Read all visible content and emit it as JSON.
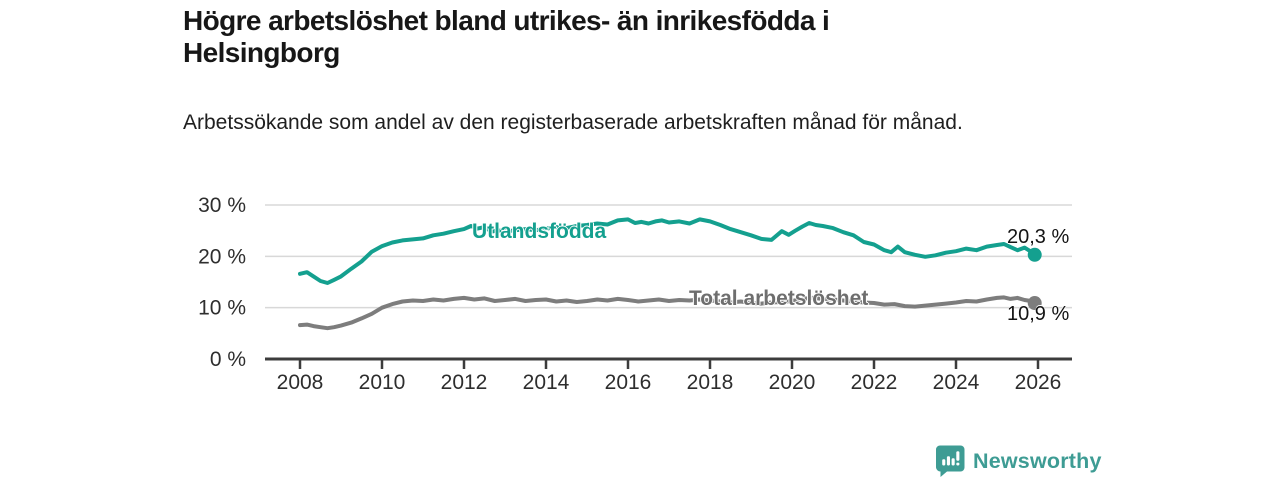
{
  "header": {
    "title": "Högre arbetslöshet bland utrikes- än inrikesfödda i Helsingborg",
    "subtitle": "Arbetssökande som andel av den registerbaserade arbetskraften månad för månad."
  },
  "footer": {
    "brand": "Newsworthy",
    "brand_color": "#3e9c94",
    "logo_icon": "newsworthy-chart-bubble-icon"
  },
  "chart_data": {
    "type": "line",
    "title": "Högre arbetslöshet bland utrikes- än inrikesfödda i Helsingborg",
    "subtitle": "Arbetssökande som andel av den registerbaserade arbetskraften månad för månad.",
    "unit": "%",
    "xlim": [
      2007.15,
      2026.85
    ],
    "ylim": [
      0,
      30
    ],
    "grid": "horizontal",
    "legend_position": "inline-labels",
    "x_ticks": [
      2008,
      2010,
      2012,
      2014,
      2016,
      2018,
      2020,
      2022,
      2024,
      2026
    ],
    "y_ticks": [
      {
        "value": 0,
        "label": "0 %"
      },
      {
        "value": 10,
        "label": "10 %"
      },
      {
        "value": 20,
        "label": "20 %"
      },
      {
        "value": 30,
        "label": "30 %"
      }
    ],
    "colors": {
      "axis": "#3c3c3c",
      "gridline": "#d8d8d8",
      "tick_text": "#2e2e2e"
    },
    "series": [
      {
        "name": "Utlandsfödda",
        "color": "#14a08f",
        "end_label": "20,3 %",
        "last_value": 20.3,
        "points": [
          [
            2008.0,
            16.6
          ],
          [
            2008.17,
            16.9
          ],
          [
            2008.33,
            16.1
          ],
          [
            2008.5,
            15.2
          ],
          [
            2008.67,
            14.8
          ],
          [
            2008.83,
            15.4
          ],
          [
            2009.0,
            16.1
          ],
          [
            2009.25,
            17.6
          ],
          [
            2009.5,
            19.0
          ],
          [
            2009.75,
            20.9
          ],
          [
            2010.0,
            22.0
          ],
          [
            2010.25,
            22.7
          ],
          [
            2010.5,
            23.1
          ],
          [
            2010.75,
            23.3
          ],
          [
            2011.0,
            23.5
          ],
          [
            2011.25,
            24.1
          ],
          [
            2011.5,
            24.4
          ],
          [
            2011.75,
            24.9
          ],
          [
            2012.0,
            25.3
          ],
          [
            2012.17,
            25.9
          ],
          [
            2012.33,
            25.4
          ],
          [
            2012.5,
            25.7
          ],
          [
            2012.67,
            24.8
          ],
          [
            2012.83,
            25.1
          ],
          [
            2013.0,
            24.8
          ],
          [
            2013.25,
            25.1
          ],
          [
            2013.5,
            25.3
          ],
          [
            2013.75,
            25.1
          ],
          [
            2014.0,
            25.4
          ],
          [
            2014.25,
            25.7
          ],
          [
            2014.5,
            25.5
          ],
          [
            2014.75,
            25.9
          ],
          [
            2015.0,
            26.1
          ],
          [
            2015.25,
            26.4
          ],
          [
            2015.5,
            26.2
          ],
          [
            2015.75,
            27.0
          ],
          [
            2016.0,
            27.2
          ],
          [
            2016.17,
            26.5
          ],
          [
            2016.33,
            26.7
          ],
          [
            2016.5,
            26.4
          ],
          [
            2016.67,
            26.8
          ],
          [
            2016.83,
            27.0
          ],
          [
            2017.0,
            26.6
          ],
          [
            2017.25,
            26.8
          ],
          [
            2017.5,
            26.4
          ],
          [
            2017.75,
            27.2
          ],
          [
            2018.0,
            26.8
          ],
          [
            2018.25,
            26.1
          ],
          [
            2018.5,
            25.3
          ],
          [
            2018.75,
            24.7
          ],
          [
            2019.0,
            24.1
          ],
          [
            2019.25,
            23.4
          ],
          [
            2019.5,
            23.2
          ],
          [
            2019.75,
            24.9
          ],
          [
            2019.92,
            24.2
          ],
          [
            2020.08,
            25.0
          ],
          [
            2020.25,
            25.8
          ],
          [
            2020.42,
            26.5
          ],
          [
            2020.58,
            26.1
          ],
          [
            2020.75,
            25.9
          ],
          [
            2021.0,
            25.5
          ],
          [
            2021.25,
            24.7
          ],
          [
            2021.5,
            24.1
          ],
          [
            2021.75,
            22.8
          ],
          [
            2022.0,
            22.3
          ],
          [
            2022.25,
            21.2
          ],
          [
            2022.42,
            20.8
          ],
          [
            2022.58,
            21.9
          ],
          [
            2022.75,
            20.8
          ],
          [
            2023.0,
            20.3
          ],
          [
            2023.25,
            19.9
          ],
          [
            2023.5,
            20.2
          ],
          [
            2023.75,
            20.7
          ],
          [
            2024.0,
            21.0
          ],
          [
            2024.25,
            21.5
          ],
          [
            2024.5,
            21.2
          ],
          [
            2024.75,
            21.9
          ],
          [
            2025.0,
            22.2
          ],
          [
            2025.17,
            22.4
          ],
          [
            2025.33,
            21.8
          ],
          [
            2025.5,
            21.2
          ],
          [
            2025.67,
            21.7
          ],
          [
            2025.83,
            20.9
          ],
          [
            2025.92,
            20.3
          ]
        ]
      },
      {
        "name": "Total arbetslöshet",
        "color": "#7d7d7d",
        "end_label": "10,9 %",
        "last_value": 10.9,
        "points": [
          [
            2008.0,
            6.6
          ],
          [
            2008.17,
            6.7
          ],
          [
            2008.33,
            6.4
          ],
          [
            2008.5,
            6.2
          ],
          [
            2008.67,
            6.0
          ],
          [
            2008.83,
            6.2
          ],
          [
            2009.0,
            6.5
          ],
          [
            2009.25,
            7.1
          ],
          [
            2009.5,
            7.9
          ],
          [
            2009.75,
            8.8
          ],
          [
            2010.0,
            10.0
          ],
          [
            2010.25,
            10.7
          ],
          [
            2010.5,
            11.2
          ],
          [
            2010.75,
            11.4
          ],
          [
            2011.0,
            11.3
          ],
          [
            2011.25,
            11.6
          ],
          [
            2011.5,
            11.4
          ],
          [
            2011.75,
            11.7
          ],
          [
            2012.0,
            11.9
          ],
          [
            2012.25,
            11.6
          ],
          [
            2012.5,
            11.8
          ],
          [
            2012.75,
            11.3
          ],
          [
            2013.0,
            11.5
          ],
          [
            2013.25,
            11.7
          ],
          [
            2013.5,
            11.3
          ],
          [
            2013.75,
            11.5
          ],
          [
            2014.0,
            11.6
          ],
          [
            2014.25,
            11.2
          ],
          [
            2014.5,
            11.4
          ],
          [
            2014.75,
            11.1
          ],
          [
            2015.0,
            11.3
          ],
          [
            2015.25,
            11.6
          ],
          [
            2015.5,
            11.4
          ],
          [
            2015.75,
            11.7
          ],
          [
            2016.0,
            11.5
          ],
          [
            2016.25,
            11.2
          ],
          [
            2016.5,
            11.4
          ],
          [
            2016.75,
            11.6
          ],
          [
            2017.0,
            11.3
          ],
          [
            2017.25,
            11.5
          ],
          [
            2017.5,
            11.4
          ],
          [
            2017.75,
            11.6
          ],
          [
            2018.0,
            11.4
          ],
          [
            2018.25,
            11.2
          ],
          [
            2018.5,
            11.0
          ],
          [
            2018.75,
            11.2
          ],
          [
            2019.0,
            10.9
          ],
          [
            2019.25,
            10.8
          ],
          [
            2019.5,
            11.0
          ],
          [
            2019.75,
            11.1
          ],
          [
            2020.0,
            11.3
          ],
          [
            2020.25,
            11.7
          ],
          [
            2020.5,
            11.9
          ],
          [
            2020.75,
            11.7
          ],
          [
            2021.0,
            11.6
          ],
          [
            2021.25,
            11.4
          ],
          [
            2021.5,
            11.2
          ],
          [
            2021.75,
            11.0
          ],
          [
            2022.0,
            10.9
          ],
          [
            2022.25,
            10.6
          ],
          [
            2022.5,
            10.7
          ],
          [
            2022.75,
            10.3
          ],
          [
            2023.0,
            10.2
          ],
          [
            2023.25,
            10.4
          ],
          [
            2023.5,
            10.6
          ],
          [
            2023.75,
            10.8
          ],
          [
            2024.0,
            11.0
          ],
          [
            2024.25,
            11.3
          ],
          [
            2024.5,
            11.2
          ],
          [
            2024.75,
            11.6
          ],
          [
            2025.0,
            11.9
          ],
          [
            2025.17,
            12.0
          ],
          [
            2025.33,
            11.7
          ],
          [
            2025.5,
            11.9
          ],
          [
            2025.67,
            11.5
          ],
          [
            2025.83,
            11.3
          ],
          [
            2025.92,
            10.9
          ]
        ]
      }
    ]
  }
}
